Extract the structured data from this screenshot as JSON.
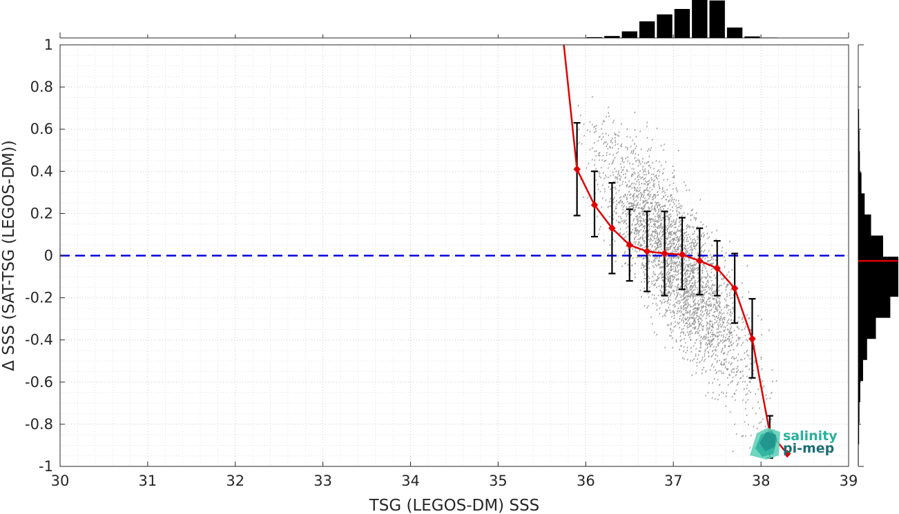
{
  "chart_data": {
    "type": "scatter",
    "title": "",
    "xlabel": "TSG (LEGOS-DM) SSS",
    "ylabel": "Δ SSS (SAT-TSG (LEGOS-DM))",
    "xlim": [
      30,
      39
    ],
    "ylim": [
      -1,
      1
    ],
    "x_ticks": [
      "30",
      "31",
      "32",
      "33",
      "34",
      "35",
      "36",
      "37",
      "38",
      "39"
    ],
    "y_ticks": [
      "-1",
      "-0.8",
      "-0.6",
      "-0.4",
      "-0.2",
      "0",
      "0.2",
      "0.4",
      "0.6",
      "0.8",
      "1"
    ],
    "grid": true,
    "reference_line": {
      "y": 0,
      "style": "dashed",
      "color": "#0000dd"
    },
    "scatter_cloud": {
      "color": "#888888",
      "x_range": [
        35.9,
        38.2
      ],
      "center": [
        37.05,
        -0.05
      ]
    },
    "binned_mean": {
      "color": "#e00000",
      "x": [
        35.75,
        35.9,
        36.1,
        36.3,
        36.5,
        36.7,
        36.9,
        37.1,
        37.3,
        37.5,
        37.7,
        37.9,
        38.1,
        38.3
      ],
      "y": [
        1.0,
        0.41,
        0.24,
        0.13,
        0.05,
        0.02,
        0.01,
        0.005,
        -0.025,
        -0.06,
        -0.155,
        -0.395,
        -0.84,
        -0.94
      ],
      "marker": [
        false,
        true,
        true,
        true,
        true,
        true,
        true,
        true,
        true,
        true,
        true,
        true,
        true,
        true
      ],
      "err_low": [
        null,
        0.19,
        0.09,
        -0.085,
        -0.12,
        -0.17,
        -0.19,
        -0.16,
        -0.185,
        -0.19,
        -0.32,
        -0.58,
        -0.96,
        null
      ],
      "err_high": [
        null,
        0.63,
        0.4,
        0.345,
        0.22,
        0.21,
        0.21,
        0.18,
        0.13,
        0.07,
        0.01,
        -0.205,
        -0.76,
        null
      ]
    },
    "top_histogram": {
      "bin_centers": [
        35.1,
        35.3,
        35.5,
        35.7,
        35.9,
        36.1,
        36.3,
        36.5,
        36.7,
        36.9,
        37.1,
        37.3,
        37.5,
        37.7,
        37.9,
        38.1,
        38.3
      ],
      "rel_counts": [
        0,
        0,
        0,
        0,
        0,
        0.02,
        0.05,
        0.17,
        0.43,
        0.61,
        0.75,
        1.0,
        0.97,
        0.27,
        0.04,
        0.01,
        0
      ]
    },
    "right_histogram": {
      "bin_centers": [
        0.6,
        0.5,
        0.4,
        0.3,
        0.2,
        0.1,
        0.0,
        -0.1,
        -0.2,
        -0.3,
        -0.4,
        -0.5,
        -0.6,
        -0.7,
        -0.8,
        -0.9
      ],
      "rel_counts": [
        0.02,
        0.03,
        0.04,
        0.08,
        0.16,
        0.32,
        0.62,
        1.0,
        0.8,
        0.44,
        0.22,
        0.12,
        0.05,
        0.03,
        0.02,
        0.01
      ],
      "mean_line": {
        "y": -0.025,
        "color": "#e00000"
      }
    }
  },
  "logo": {
    "line1": "salinity",
    "line2": "pi-mep",
    "color1": "#2aaf9c",
    "color2": "#1d6f74"
  }
}
